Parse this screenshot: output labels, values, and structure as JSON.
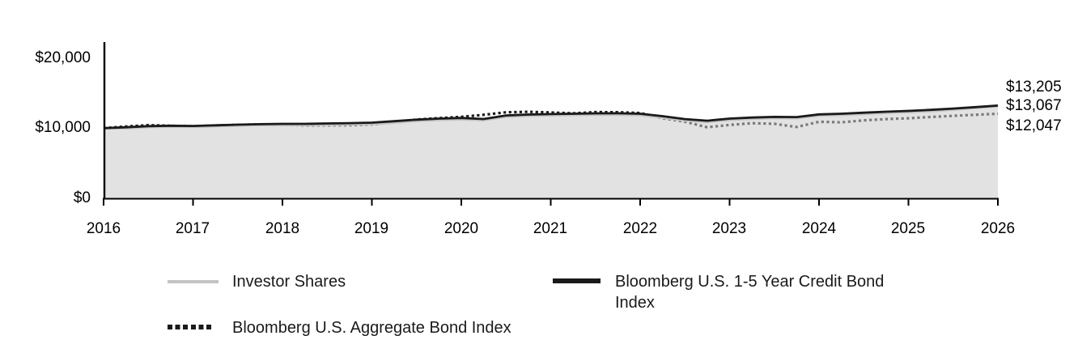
{
  "chart_data": {
    "type": "area",
    "xlabel": "",
    "ylabel": "",
    "xlim": [
      2016,
      2026
    ],
    "ylim": [
      0,
      20000
    ],
    "grid": false,
    "legend_position": "bottom",
    "area_fill": "rgba(202,202,202,0.55)",
    "x": [
      2016.0,
      2016.25,
      2016.5,
      2016.75,
      2017.0,
      2017.25,
      2017.5,
      2017.75,
      2018.0,
      2018.25,
      2018.5,
      2018.75,
      2019.0,
      2019.25,
      2019.5,
      2019.75,
      2020.0,
      2020.25,
      2020.5,
      2020.75,
      2021.0,
      2021.25,
      2021.5,
      2021.75,
      2022.0,
      2022.25,
      2022.5,
      2022.75,
      2023.0,
      2023.25,
      2023.5,
      2023.75,
      2024.0,
      2024.25,
      2024.5,
      2024.75,
      2025.0,
      2025.25,
      2025.5,
      2025.75,
      2026.0
    ],
    "series": [
      {
        "name": "Investor Shares",
        "style": "solid",
        "color": "#c4c4c4",
        "end_value": 13067,
        "values": [
          10000,
          9950,
          10120,
          10200,
          10150,
          10250,
          10340,
          10410,
          10420,
          10410,
          10450,
          10510,
          10560,
          10760,
          11000,
          11140,
          11230,
          11100,
          11600,
          11740,
          11800,
          11850,
          11890,
          11900,
          11840,
          11480,
          11080,
          10850,
          11150,
          11300,
          11400,
          11380,
          11780,
          11850,
          12000,
          12140,
          12250,
          12400,
          12600,
          12840,
          13067
        ]
      },
      {
        "name": "Bloomberg U.S. 1-5 Year Credit Bond Index",
        "style": "solid",
        "color": "#1a1a1a",
        "end_value": 13205,
        "values": [
          10000,
          10120,
          10280,
          10340,
          10310,
          10400,
          10490,
          10560,
          10600,
          10610,
          10660,
          10710,
          10780,
          10980,
          11200,
          11350,
          11450,
          11300,
          11800,
          11930,
          12000,
          12050,
          12100,
          12110,
          12050,
          11700,
          11280,
          11050,
          11350,
          11500,
          11600,
          11570,
          11950,
          12050,
          12200,
          12330,
          12450,
          12600,
          12780,
          12990,
          13205
        ]
      },
      {
        "name": "Bloomberg U.S. Aggregate Bond Index",
        "style": "dotted",
        "color": "#1a1a1a",
        "end_value": 12047,
        "values": [
          10000,
          10220,
          10420,
          10330,
          10260,
          10360,
          10470,
          10510,
          10480,
          10390,
          10390,
          10410,
          10520,
          10820,
          11220,
          11420,
          11600,
          11900,
          12250,
          12320,
          12230,
          12100,
          12280,
          12270,
          12150,
          11400,
          10900,
          10120,
          10450,
          10700,
          10620,
          10150,
          10900,
          10820,
          11100,
          11280,
          11400,
          11580,
          11750,
          11900,
          12047
        ]
      }
    ],
    "xticks": [
      "2016",
      "2017",
      "2018",
      "2019",
      "2020",
      "2021",
      "2022",
      "2023",
      "2024",
      "2025",
      "2026"
    ],
    "yticks": [
      "$20,000",
      "$10,000",
      "$0"
    ],
    "end_labels": [
      "$13,205",
      "$13,067",
      "$12,047"
    ]
  },
  "legend": {
    "items": [
      {
        "label": "Investor Shares"
      },
      {
        "label": "Bloomberg U.S. 1-5 Year Credit Bond Index"
      },
      {
        "label": "Bloomberg U.S. Aggregate Bond Index"
      }
    ]
  }
}
